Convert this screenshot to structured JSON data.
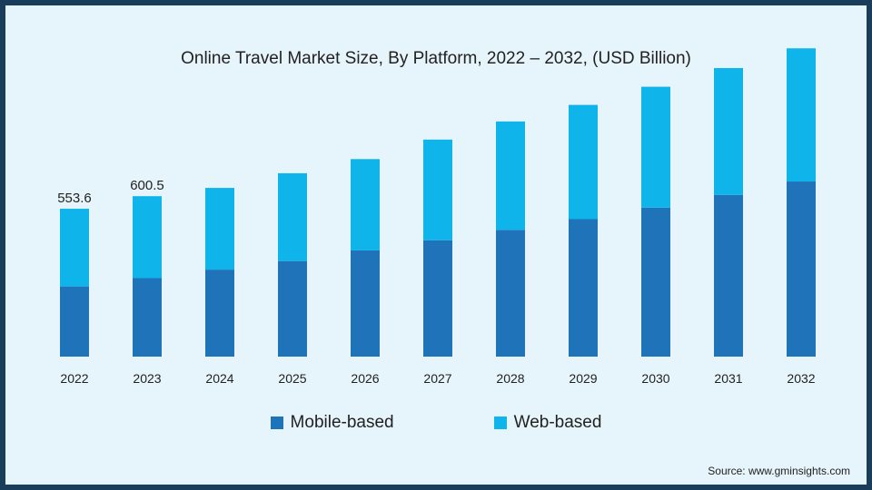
{
  "chart_data": {
    "type": "bar",
    "stacked": true,
    "title": "Online Travel Market Size, By Platform, 2022 – 2032, (USD Billion)",
    "categories": [
      "2022",
      "2023",
      "2024",
      "2025",
      "2026",
      "2027",
      "2028",
      "2029",
      "2030",
      "2031",
      "2032"
    ],
    "series": [
      {
        "name": "Mobile-based",
        "color": "#1f73b8",
        "values": [
          263,
          294,
          326,
          358,
          398,
          436,
          475,
          515,
          558,
          606,
          656
        ]
      },
      {
        "name": "Web-based",
        "color": "#0fb5ea",
        "values": [
          291,
          307,
          306,
          329,
          342,
          377,
          406,
          428,
          453,
          475,
          499
        ]
      }
    ],
    "data_labels": {
      "2022": "553.6",
      "2023": "600.5"
    },
    "ylim": [
      0,
      1200
    ],
    "grid": false,
    "legend": "bottom-center"
  },
  "legend": [
    {
      "label": "Mobile-based",
      "color": "#1f73b8"
    },
    {
      "label": "Web-based",
      "color": "#0fb5ea"
    }
  ],
  "source": "Source: www.gminsights.com"
}
